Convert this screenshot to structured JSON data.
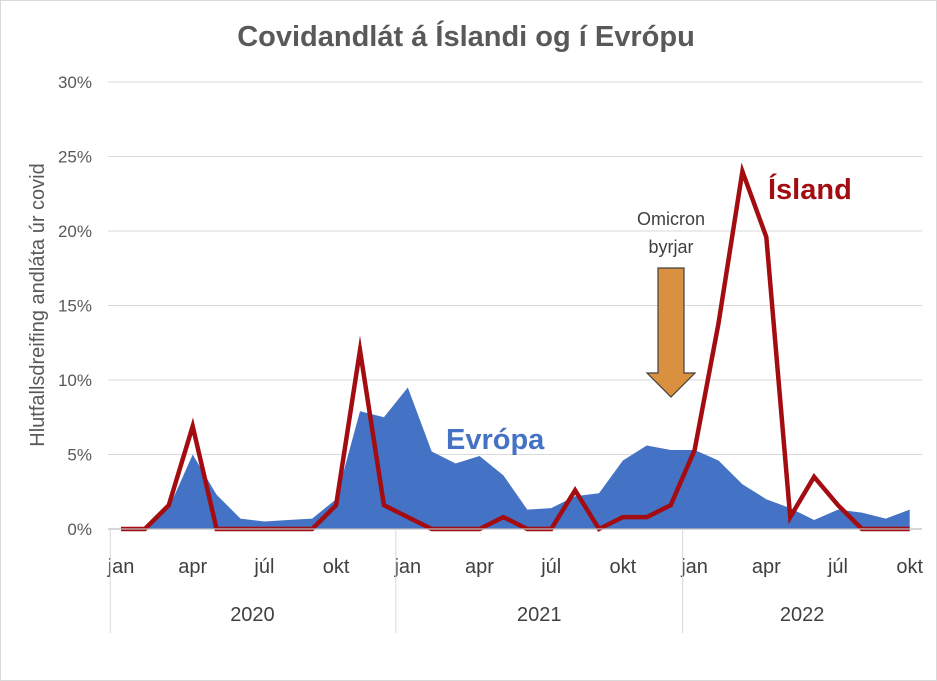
{
  "chart_data": {
    "type": "line",
    "title": "Covidandlát á Íslandi og í Evrópu",
    "ylabel": "Hlutfallsdreifing  andláta úr covid",
    "xlabel": "",
    "ylim": [
      0,
      30
    ],
    "yticks": [
      "0%",
      "5%",
      "10%",
      "15%",
      "20%",
      "25%",
      "30%"
    ],
    "grid": true,
    "x_month_labels": [
      "jan",
      "apr",
      "júl",
      "okt",
      "jan",
      "apr",
      "júl",
      "okt",
      "jan",
      "apr",
      "júl",
      "okt"
    ],
    "years": [
      "2020",
      "2021",
      "2022"
    ],
    "series": [
      {
        "name": "Evrópa",
        "style": "area",
        "color": "#4472c4",
        "values": [
          0,
          0,
          1.4,
          5.0,
          2.3,
          0.7,
          0.5,
          0.6,
          0.7,
          2.0,
          7.9,
          7.5,
          9.5,
          5.2,
          4.4,
          4.9,
          3.6,
          1.3,
          1.4,
          2.2,
          2.4,
          4.6,
          5.6,
          5.3,
          5.3,
          4.6,
          3.0,
          2.0,
          1.4,
          0.6,
          1.3,
          1.1,
          0.7,
          1.3
        ]
      },
      {
        "name": "Ísland",
        "style": "line",
        "color": "#a30d11",
        "values": [
          0,
          0,
          1.6,
          6.9,
          0,
          0,
          0,
          0,
          0,
          1.6,
          12.0,
          1.6,
          0.8,
          0,
          0,
          0,
          0.8,
          0,
          0,
          2.6,
          0,
          0.8,
          0.8,
          1.6,
          5.3,
          13.8,
          24.0,
          19.6,
          0.8,
          3.5,
          1.6,
          0,
          0,
          0
        ]
      }
    ],
    "annotation": {
      "text_line1": "Omicron",
      "text_line2": "byrjar",
      "arrow_at_x": 23.7,
      "arrow_color": "#d9913f"
    }
  }
}
